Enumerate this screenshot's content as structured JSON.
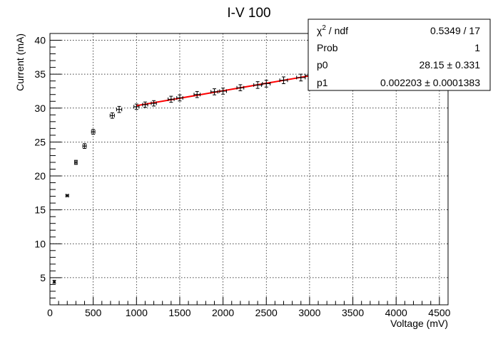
{
  "chart_data": {
    "type": "scatter",
    "title": "I-V 100",
    "xlabel": "Voltage (mV)",
    "ylabel": "Current (mA)",
    "xlim": [
      0,
      4600
    ],
    "ylim": [
      1,
      41
    ],
    "grid": true,
    "x_ticks": [
      0,
      500,
      1000,
      1500,
      2000,
      2500,
      3000,
      3500,
      4000,
      4500
    ],
    "y_ticks": [
      5,
      10,
      15,
      20,
      25,
      30,
      35,
      40
    ],
    "x_tick_labels": [
      "0",
      "500",
      "1000",
      "1500",
      "2000",
      "2500",
      "3000",
      "3500",
      "4000",
      "4500"
    ],
    "y_tick_labels": [
      "5",
      "10",
      "15",
      "20",
      "25",
      "30",
      "35",
      "40"
    ],
    "series": [
      {
        "points": [
          {
            "x": 50,
            "y": 4.4,
            "xerr": 10,
            "yerr": 0.2
          },
          {
            "x": 200,
            "y": 17.1,
            "xerr": 15,
            "yerr": 0.15
          },
          {
            "x": 300,
            "y": 22.0,
            "xerr": 15,
            "yerr": 0.3
          },
          {
            "x": 400,
            "y": 24.4,
            "xerr": 20,
            "yerr": 0.35
          },
          {
            "x": 500,
            "y": 26.5,
            "xerr": 20,
            "yerr": 0.35
          },
          {
            "x": 720,
            "y": 28.9,
            "xerr": 25,
            "yerr": 0.4
          },
          {
            "x": 800,
            "y": 29.8,
            "xerr": 30,
            "yerr": 0.45
          },
          {
            "x": 1000,
            "y": 30.2,
            "xerr": 30,
            "yerr": 0.4
          },
          {
            "x": 1100,
            "y": 30.5,
            "xerr": 30,
            "yerr": 0.4
          },
          {
            "x": 1200,
            "y": 30.7,
            "xerr": 30,
            "yerr": 0.4
          },
          {
            "x": 1400,
            "y": 31.3,
            "xerr": 35,
            "yerr": 0.45
          },
          {
            "x": 1500,
            "y": 31.5,
            "xerr": 35,
            "yerr": 0.45
          },
          {
            "x": 1700,
            "y": 32.0,
            "xerr": 35,
            "yerr": 0.45
          },
          {
            "x": 1900,
            "y": 32.4,
            "xerr": 40,
            "yerr": 0.45
          },
          {
            "x": 2000,
            "y": 32.5,
            "xerr": 40,
            "yerr": 0.45
          },
          {
            "x": 2200,
            "y": 33.0,
            "xerr": 40,
            "yerr": 0.45
          },
          {
            "x": 2400,
            "y": 33.4,
            "xerr": 45,
            "yerr": 0.5
          },
          {
            "x": 2500,
            "y": 33.6,
            "xerr": 45,
            "yerr": 0.5
          },
          {
            "x": 2700,
            "y": 34.1,
            "xerr": 45,
            "yerr": 0.5
          },
          {
            "x": 2900,
            "y": 34.5,
            "xerr": 50,
            "yerr": 0.5
          },
          {
            "x": 3000,
            "y": 34.8,
            "xerr": 50,
            "yerr": 0.5
          }
        ]
      }
    ],
    "fit": {
      "color": "#ff0000",
      "x_start": 1000,
      "x_end": 3150,
      "p0": 28.15,
      "p1": 0.002203
    },
    "stats_box": {
      "placement": "top-right",
      "rows": [
        {
          "label_main": "χ",
          "label_sup": "2",
          "label_rest": " / ndf",
          "value": "0.5349 / 17"
        },
        {
          "label_main": "Prob",
          "label_sup": "",
          "label_rest": "",
          "value": "1"
        },
        {
          "label_main": "p0",
          "label_sup": "",
          "label_rest": "",
          "value": "28.15 ± 0.331"
        },
        {
          "label_main": "p1",
          "label_sup": "",
          "label_rest": "",
          "value": "0.002203 ± 0.0001383"
        }
      ]
    }
  }
}
